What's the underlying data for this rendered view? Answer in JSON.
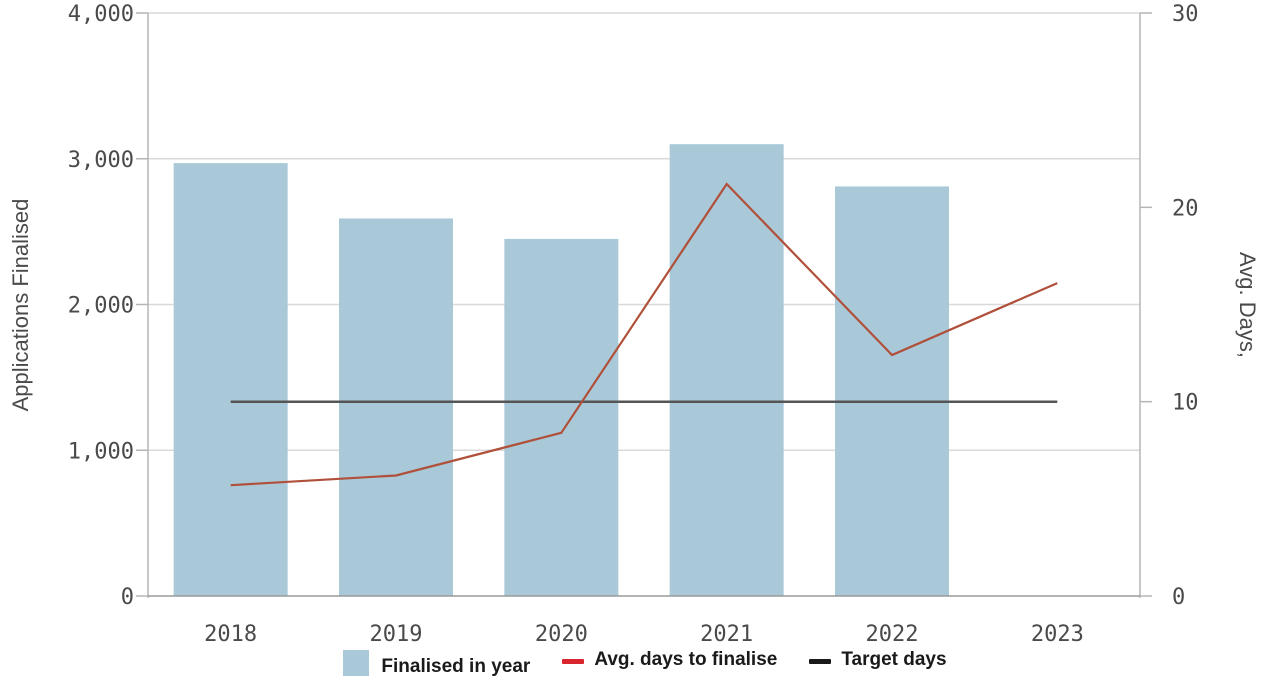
{
  "colors": {
    "bar": "#a9c9d9",
    "avg_line": "#b0503a",
    "target_line": "#555555",
    "legend_avg": "#d9262e",
    "legend_target": "#1a1a1a",
    "grid": "#d9d9d9",
    "axis": "#b5b5b5"
  },
  "chart_data": {
    "type": "bar",
    "categories": [
      "2018",
      "2019",
      "2020",
      "2021",
      "2022",
      "2023"
    ],
    "series": [
      {
        "name": "Finalised in year",
        "type": "bar",
        "axis": "left",
        "values": [
          2970,
          2590,
          2450,
          3100,
          2810,
          null
        ]
      },
      {
        "name": "Avg. days to finalise",
        "type": "line",
        "axis": "right",
        "values": [
          5.7,
          6.2,
          8.4,
          21.2,
          12.4,
          16.1
        ]
      },
      {
        "name": "Target days",
        "type": "line",
        "axis": "right",
        "values": [
          10,
          10,
          10,
          10,
          10,
          10
        ]
      }
    ],
    "ylabel": "Applications Finalised",
    "y2label": "Avg. Days,",
    "ylim": [
      0,
      4000
    ],
    "y2lim": [
      0,
      30
    ],
    "yticks": [
      "0",
      "1,000",
      "2,000",
      "3,000",
      "4,000"
    ],
    "yticks_values": [
      0,
      1000,
      2000,
      3000,
      4000
    ],
    "y2ticks": [
      "0",
      "10",
      "20",
      "30"
    ],
    "y2ticks_values": [
      0,
      10,
      20,
      30
    ],
    "grid": true,
    "legend_position": "bottom"
  }
}
